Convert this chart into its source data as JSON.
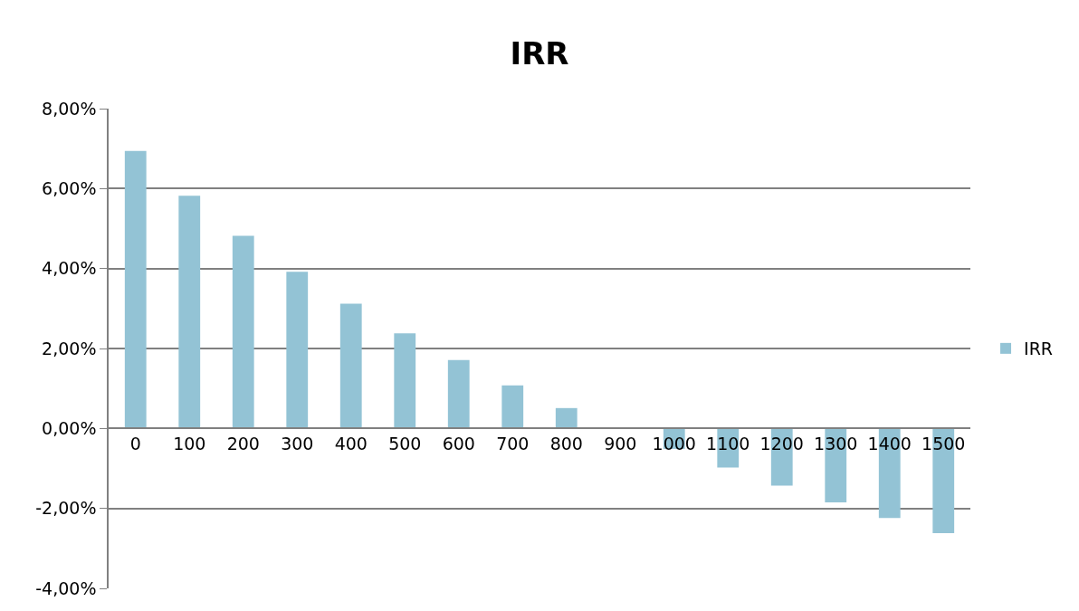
{
  "chart_data": {
    "type": "bar",
    "title": "IRR",
    "categories": [
      "0",
      "100",
      "200",
      "300",
      "400",
      "500",
      "600",
      "700",
      "800",
      "900",
      "1000",
      "1100",
      "1200",
      "1300",
      "1400",
      "1500"
    ],
    "series": [
      {
        "name": "IRR",
        "color": "#93c3d5",
        "values": [
          6.94,
          5.82,
          4.82,
          3.92,
          3.12,
          2.38,
          1.71,
          1.08,
          0.51,
          0,
          -0.51,
          -0.98,
          -1.43,
          -1.85,
          -2.24,
          -2.62
        ]
      }
    ],
    "ylim": [
      -4,
      8
    ],
    "yticks": [
      {
        "value": -4,
        "label": "-4,00%"
      },
      {
        "value": -2,
        "label": "-2,00%"
      },
      {
        "value": 0,
        "label": "0,00%"
      },
      {
        "value": 2,
        "label": "2,00%"
      },
      {
        "value": 4,
        "label": "4,00%"
      },
      {
        "value": 6,
        "label": "6,00%"
      },
      {
        "value": 8,
        "label": "8,00%"
      }
    ],
    "grid": "y",
    "legend": "right"
  }
}
